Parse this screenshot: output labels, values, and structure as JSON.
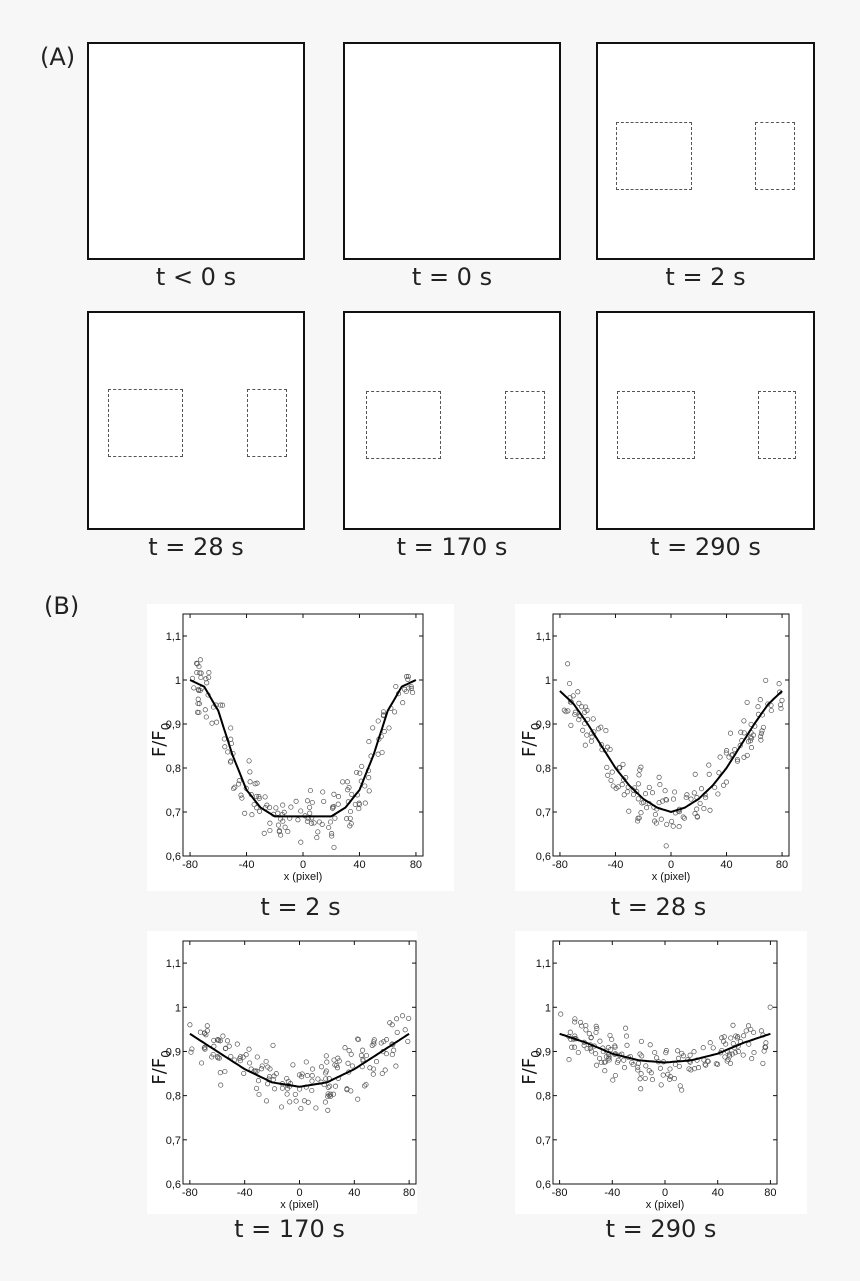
{
  "panelA": {
    "label": "(A)",
    "frames": [
      {
        "caption": "t < 0 s"
      },
      {
        "caption": "t = 0 s"
      },
      {
        "caption": "t = 2 s"
      },
      {
        "caption": "t = 28 s"
      },
      {
        "caption": "t = 170 s"
      },
      {
        "caption": "t = 290 s"
      }
    ]
  },
  "panelB": {
    "label": "(B)",
    "captions": [
      "t = 2 s",
      "t = 28 s",
      "t = 170 s",
      "t = 290 s"
    ]
  },
  "chart_data": [
    {
      "type": "scatter",
      "title": "",
      "ylabel": "F/F",
      "ylabel_sub": "0",
      "xlabel": "x (pixel)",
      "xlim": [
        -85,
        85
      ],
      "ylim": [
        0.6,
        1.15
      ],
      "xticks": [
        "-80",
        "-40",
        "0",
        "40",
        "80"
      ],
      "yticks": [
        "0,6",
        "0,7",
        "0,8",
        "0,9",
        "1",
        "1,1"
      ],
      "fit": {
        "x": [
          -80,
          -70,
          -60,
          -50,
          -40,
          -30,
          -20,
          -10,
          0,
          10,
          20,
          30,
          40,
          50,
          60,
          70,
          80
        ],
        "y": [
          1.0,
          0.985,
          0.93,
          0.83,
          0.75,
          0.71,
          0.69,
          0.69,
          0.69,
          0.69,
          0.69,
          0.71,
          0.75,
          0.83,
          0.93,
          0.985,
          1.0
        ]
      },
      "scatter": {
        "spread": 0.05
      }
    },
    {
      "type": "scatter",
      "title": "",
      "ylabel": "F/F",
      "ylabel_sub": "0",
      "xlabel": "x (pixel)",
      "xlim": [
        -85,
        85
      ],
      "ylim": [
        0.6,
        1.15
      ],
      "xticks": [
        "-80",
        "-40",
        "0",
        "40",
        "80"
      ],
      "yticks": [
        "0,6",
        "0,7",
        "0,8",
        "0,9",
        "1",
        "1,1"
      ],
      "fit": {
        "x": [
          -80,
          -70,
          -60,
          -50,
          -40,
          -30,
          -20,
          -10,
          0,
          10,
          20,
          30,
          40,
          50,
          60,
          70,
          80
        ],
        "y": [
          0.975,
          0.945,
          0.9,
          0.85,
          0.8,
          0.76,
          0.73,
          0.71,
          0.7,
          0.71,
          0.73,
          0.76,
          0.8,
          0.85,
          0.9,
          0.945,
          0.975
        ]
      },
      "scatter": {
        "spread": 0.05
      }
    },
    {
      "type": "scatter",
      "title": "",
      "ylabel": "F/F",
      "ylabel_sub": "0",
      "xlabel": "x (pixel)",
      "xlim": [
        -85,
        85
      ],
      "ylim": [
        0.6,
        1.15
      ],
      "xticks": [
        "-80",
        "-40",
        "0",
        "40",
        "80"
      ],
      "yticks": [
        "0,6",
        "0,7",
        "0,8",
        "0,9",
        "1",
        "1,1"
      ],
      "fit": {
        "x": [
          -80,
          -60,
          -40,
          -20,
          0,
          20,
          40,
          60,
          80
        ],
        "y": [
          0.94,
          0.9,
          0.86,
          0.83,
          0.82,
          0.83,
          0.86,
          0.9,
          0.94
        ]
      },
      "scatter": {
        "spread": 0.05
      }
    },
    {
      "type": "scatter",
      "title": "",
      "ylabel": "F/F",
      "ylabel_sub": "0",
      "xlabel": "x (pixel)",
      "xlim": [
        -85,
        85
      ],
      "ylim": [
        0.6,
        1.15
      ],
      "xticks": [
        "-80",
        "-40",
        "0",
        "40",
        "80"
      ],
      "yticks": [
        "0,6",
        "0,7",
        "0,8",
        "0,9",
        "1",
        "1,1"
      ],
      "fit": {
        "x": [
          -80,
          -60,
          -40,
          -20,
          0,
          20,
          40,
          60,
          80
        ],
        "y": [
          0.94,
          0.92,
          0.895,
          0.88,
          0.875,
          0.88,
          0.895,
          0.92,
          0.94
        ]
      },
      "scatter": {
        "spread": 0.045
      }
    }
  ]
}
